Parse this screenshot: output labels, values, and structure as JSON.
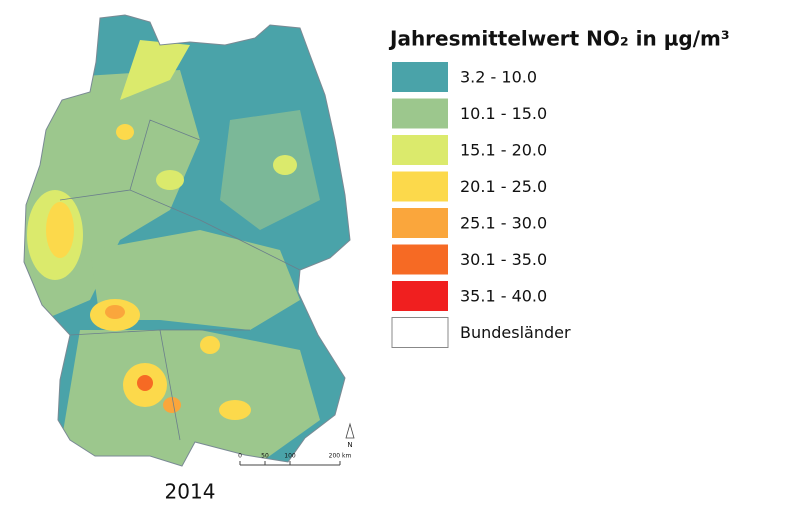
{
  "map": {
    "title": "Jahresmittelwert NO₂ in µg/m³",
    "legend": [
      {
        "label": "3.2 - 10.0",
        "color": "#4aa3a9"
      },
      {
        "label": "10.1 - 15.0",
        "color": "#9cc78d"
      },
      {
        "label": "15.1 - 20.0",
        "color": "#dbea6c"
      },
      {
        "label": "20.1 - 25.0",
        "color": "#fcd94b"
      },
      {
        "label": "25.1 - 30.0",
        "color": "#faa63c"
      },
      {
        "label": "30.1 - 35.0",
        "color": "#f66a24"
      },
      {
        "label": "35.1 - 40.0",
        "color": "#f01f1f"
      },
      {
        "label": "Bundesländer",
        "color": "#ffffff"
      }
    ],
    "year": "2014",
    "north": "N",
    "scale_bar": [
      "0",
      "50",
      "100",
      "200 km"
    ]
  }
}
